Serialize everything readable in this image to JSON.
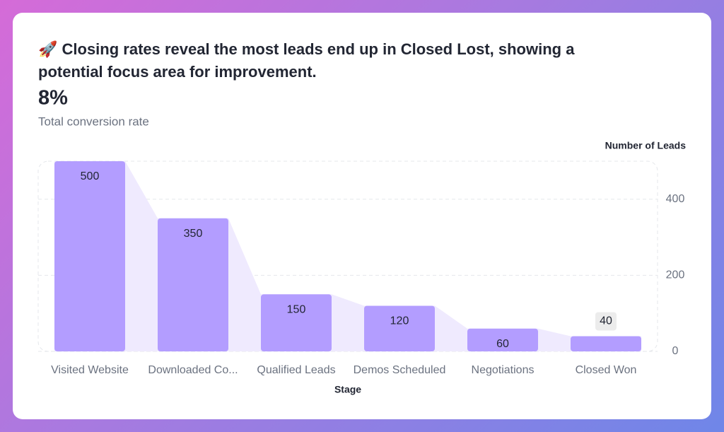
{
  "chart_data": {
    "type": "bar",
    "title": "🚀 Closing rates reveal the most leads end up in Closed Lost, showing a potential focus area for improvement.",
    "kpi": "8%",
    "kpi_label": "Total conversion rate",
    "y_label": "Number of Leads",
    "x_label": "Stage",
    "categories": [
      "Visited Website",
      "Downloaded Co...",
      "Qualified Leads",
      "Demos Scheduled",
      "Negotiations",
      "Closed Won"
    ],
    "values": [
      500,
      350,
      150,
      120,
      60,
      40
    ],
    "color": "#b39dff",
    "funnel_color": "#efeafe",
    "ylim": [
      0,
      500
    ],
    "yticks": [
      0,
      200,
      400
    ],
    "grid": true
  }
}
